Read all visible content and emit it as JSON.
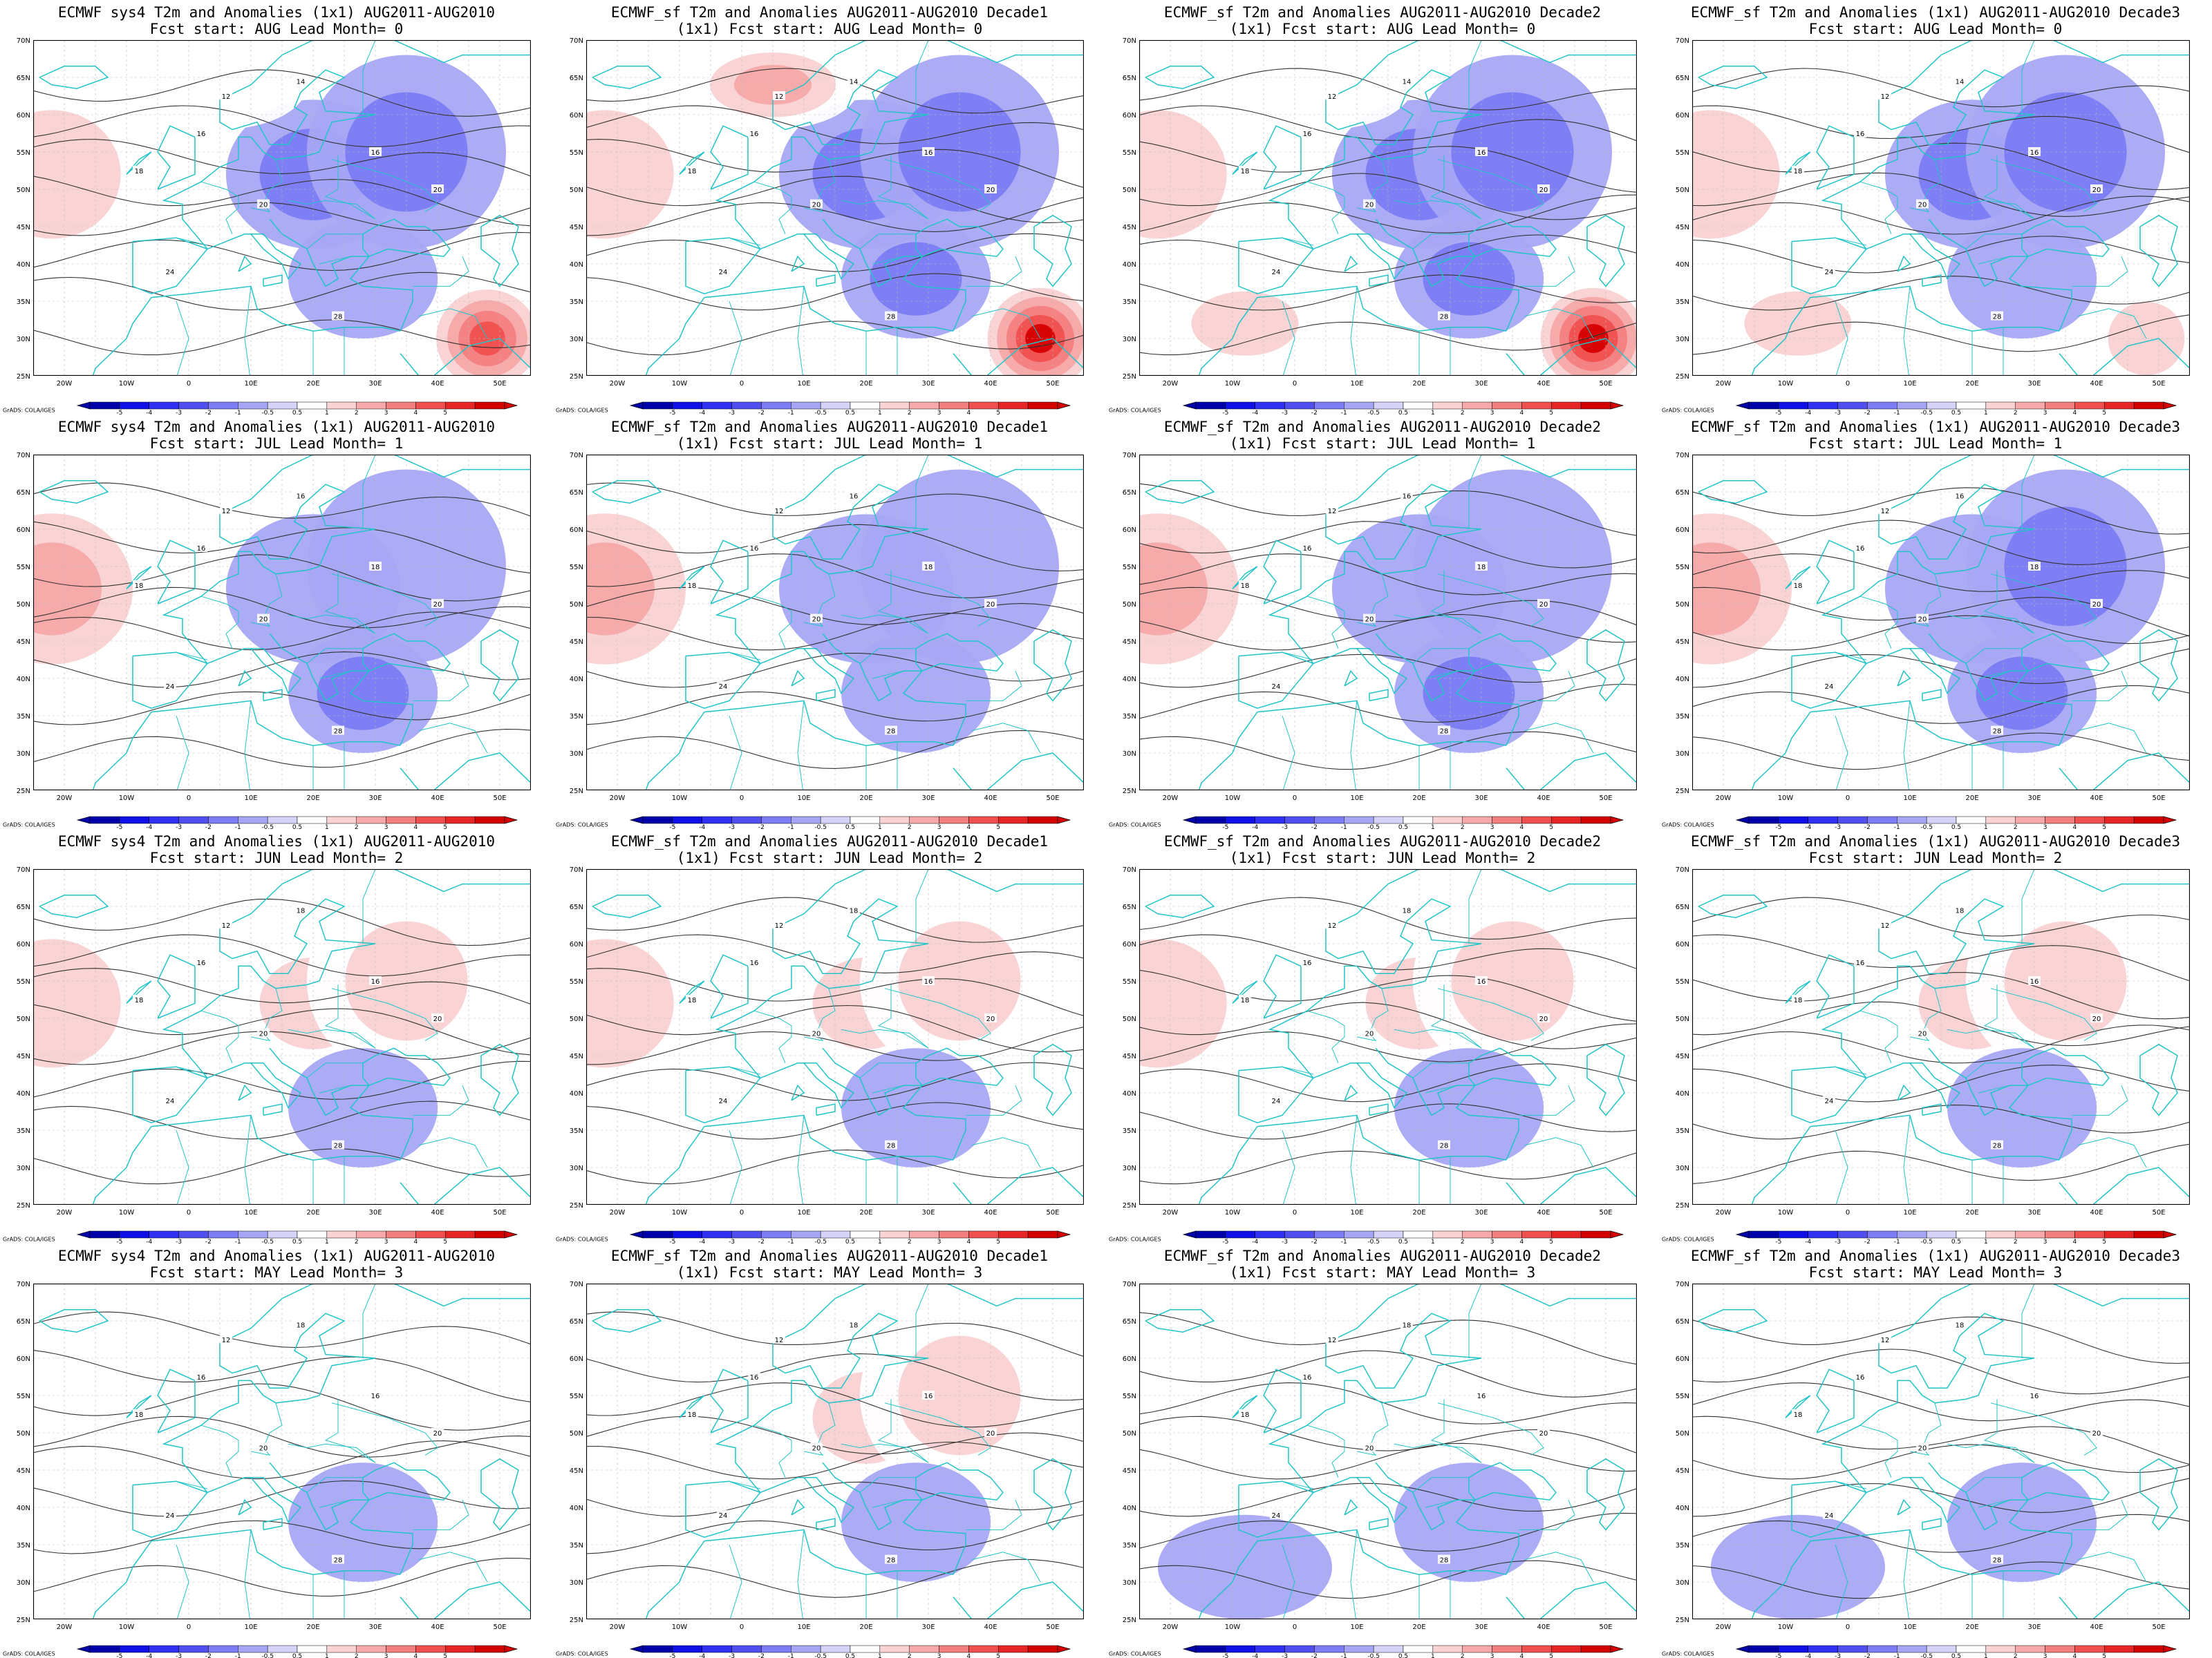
{
  "credit": "GrADS: COLA/IGES",
  "lat_labels": [
    "70N",
    "65N",
    "60N",
    "55N",
    "50N",
    "45N",
    "40N",
    "35N",
    "30N",
    "25N"
  ],
  "lon_labels": [
    "20W",
    "10W",
    "0",
    "10E",
    "20E",
    "30E",
    "40E",
    "50E"
  ],
  "colorbar_labels": [
    "-5",
    "-4",
    "-3",
    "-2",
    "-1",
    "-0.5",
    "0.5",
    "1",
    "2",
    "3",
    "4",
    "5"
  ],
  "colors": {
    "coast": "#22c4c8",
    "contour": "#333333",
    "scale": [
      "#0000aa",
      "#1010e8",
      "#3030f0",
      "#5050f0",
      "#7c7cf4",
      "#a6a6f6",
      "#d4d4fa",
      "#ffffff",
      "#fad2d2",
      "#f7a8a8",
      "#f47f7f",
      "#f05050",
      "#e82424",
      "#d40000"
    ]
  },
  "panels": [
    {
      "title1": "ECMWF sys4 T2m and Anomalies (1x1) AUG2011-AUG2010",
      "title2": "Fcst start: AUG  Lead Month= 0",
      "anom": [
        1.3,
        0.1,
        -1.2,
        -1.5,
        0.8,
        4.8,
        0.6,
        -0.8
      ],
      "labels": [
        "12",
        "16",
        "18",
        "20",
        "24",
        "28",
        "14",
        "16",
        "20"
      ]
    },
    {
      "title1": "ECMWF_sf T2m and Anomalies AUG2011-AUG2010 Decade1",
      "title2": "(1x1) Fcst start: AUG  Lead Month= 0",
      "anom": [
        1.2,
        0.2,
        -1.0,
        -1.0,
        0.9,
        5.0,
        2.0,
        -1.0
      ],
      "labels": [
        "12",
        "16",
        "18",
        "20",
        "24",
        "28",
        "14",
        "16",
        "20"
      ]
    },
    {
      "title1": "ECMWF_sf T2m and Anomalies AUG2011-AUG2010 Decade2",
      "title2": "(1x1) Fcst start: AUG  Lead Month= 0",
      "anom": [
        1.3,
        0.2,
        -1.3,
        -1.8,
        1.4,
        5.0,
        0.5,
        -1.0
      ],
      "labels": [
        "12",
        "16",
        "18",
        "20",
        "24",
        "28",
        "14",
        "16",
        "20"
      ]
    },
    {
      "title1": "ECMWF_sf T2m and Anomalies (1x1) AUG2011-AUG2010 Decade3",
      "title2": "Fcst start: AUG  Lead Month= 0",
      "anom": [
        1.3,
        0.2,
        -1.4,
        -1.8,
        1.5,
        1.0,
        0.4,
        -0.8
      ],
      "labels": [
        "12",
        "16",
        "18",
        "20",
        "24",
        "28",
        "14",
        "16",
        "20"
      ]
    },
    {
      "title1": "ECMWF sys4 T2m and Anomalies (1x1) AUG2011-AUG2010",
      "title2": "Fcst start: JUL  Lead Month= 1",
      "anom": [
        2.2,
        0.1,
        -0.8,
        -0.9,
        0.6,
        0.5,
        0.1,
        -1.0
      ],
      "labels": [
        "12",
        "16",
        "18",
        "20",
        "24",
        "28",
        "16",
        "18",
        "20"
      ]
    },
    {
      "title1": "ECMWF_sf T2m and Anomalies AUG2011-AUG2010 Decade1",
      "title2": "(1x1) Fcst start: JUL  Lead Month= 1",
      "anom": [
        2.2,
        0.2,
        -0.8,
        -0.7,
        0.8,
        0.4,
        0.1,
        -0.7
      ],
      "labels": [
        "12",
        "16",
        "18",
        "20",
        "24",
        "28",
        "16",
        "18",
        "20"
      ]
    },
    {
      "title1": "ECMWF_sf T2m and Anomalies AUG2011-AUG2010 Decade2",
      "title2": "(1x1) Fcst start: JUL  Lead Month= 1",
      "anom": [
        2.3,
        0.2,
        -0.8,
        -0.9,
        0.7,
        0.5,
        0.1,
        -1.0
      ],
      "labels": [
        "12",
        "16",
        "18",
        "20",
        "24",
        "28",
        "16",
        "18",
        "20"
      ]
    },
    {
      "title1": "ECMWF_sf T2m and Anomalies (1x1) AUG2011-AUG2010 Decade3",
      "title2": "Fcst start: JUL  Lead Month= 1",
      "anom": [
        2.0,
        0.2,
        -0.8,
        -1.0,
        0.8,
        0.4,
        0.1,
        -1.0
      ],
      "labels": [
        "12",
        "16",
        "18",
        "20",
        "24",
        "28",
        "16",
        "18",
        "20"
      ]
    },
    {
      "title1": "ECMWF sys4 T2m and Anomalies (1x1) AUG2011-AUG2010",
      "title2": "Fcst start: JUN  Lead Month= 2",
      "anom": [
        1.0,
        0.1,
        1.0,
        1.2,
        0.1,
        0.5,
        0.1,
        -0.6
      ],
      "labels": [
        "12",
        "16",
        "18",
        "20",
        "24",
        "28",
        "18",
        "16",
        "20"
      ]
    },
    {
      "title1": "ECMWF_sf T2m and Anomalies AUG2011-AUG2010 Decade1",
      "title2": "(1x1) Fcst start: JUN  Lead Month= 2",
      "anom": [
        1.2,
        0.1,
        1.2,
        1.2,
        0.1,
        0.5,
        0.1,
        -0.8
      ],
      "labels": [
        "12",
        "16",
        "18",
        "20",
        "24",
        "28",
        "18",
        "16",
        "20"
      ]
    },
    {
      "title1": "ECMWF_sf T2m and Anomalies AUG2011-AUG2010 Decade2",
      "title2": "(1x1) Fcst start: JUN  Lead Month= 2",
      "anom": [
        1.2,
        0.2,
        1.2,
        1.3,
        0.1,
        0.5,
        0.1,
        -0.8
      ],
      "labels": [
        "12",
        "16",
        "18",
        "20",
        "24",
        "28",
        "18",
        "16",
        "20"
      ]
    },
    {
      "title1": "ECMWF_sf T2m and Anomalies (1x1) AUG2011-AUG2010 Decade3",
      "title2": "Fcst start: JUN  Lead Month= 2",
      "anom": [
        0.9,
        0.2,
        1.6,
        1.2,
        0.1,
        0.5,
        0.1,
        -0.6
      ],
      "labels": [
        "12",
        "16",
        "18",
        "20",
        "24",
        "28",
        "18",
        "16",
        "20"
      ]
    },
    {
      "title1": "ECMWF sys4 T2m and Anomalies (1x1) AUG2011-AUG2010",
      "title2": "Fcst start: MAY  Lead Month= 3",
      "anom": [
        0.1,
        0.1,
        0.5,
        0.4,
        0.1,
        0.1,
        0.1,
        -0.5
      ],
      "labels": [
        "12",
        "16",
        "18",
        "20",
        "24",
        "28",
        "18",
        "16",
        "20"
      ]
    },
    {
      "title1": "ECMWF_sf T2m and Anomalies AUG2011-AUG2010 Decade1",
      "title2": "(1x1) Fcst start: MAY  Lead Month= 3",
      "anom": [
        0.2,
        0.1,
        1.2,
        1.0,
        0.1,
        0.1,
        0.1,
        -0.5
      ],
      "labels": [
        "12",
        "16",
        "18",
        "20",
        "24",
        "28",
        "18",
        "16",
        "20"
      ]
    },
    {
      "title1": "ECMWF_sf T2m and Anomalies AUG2011-AUG2010 Decade2",
      "title2": "(1x1) Fcst start: MAY  Lead Month= 3",
      "anom": [
        0.1,
        0.1,
        0.6,
        0.1,
        -0.6,
        0.1,
        0.1,
        -0.6
      ],
      "labels": [
        "12",
        "16",
        "18",
        "20",
        "24",
        "28",
        "18",
        "16",
        "20"
      ]
    },
    {
      "title1": "ECMWF_sf T2m and Anomalies (1x1) AUG2011-AUG2010 Decade3",
      "title2": "Fcst start: MAY  Lead Month= 3",
      "anom": [
        0.1,
        0.1,
        0.1,
        0.1,
        -0.6,
        0.1,
        0.1,
        -0.6
      ],
      "labels": [
        "12",
        "16",
        "18",
        "20",
        "24",
        "28",
        "18",
        "16",
        "20"
      ]
    }
  ]
}
